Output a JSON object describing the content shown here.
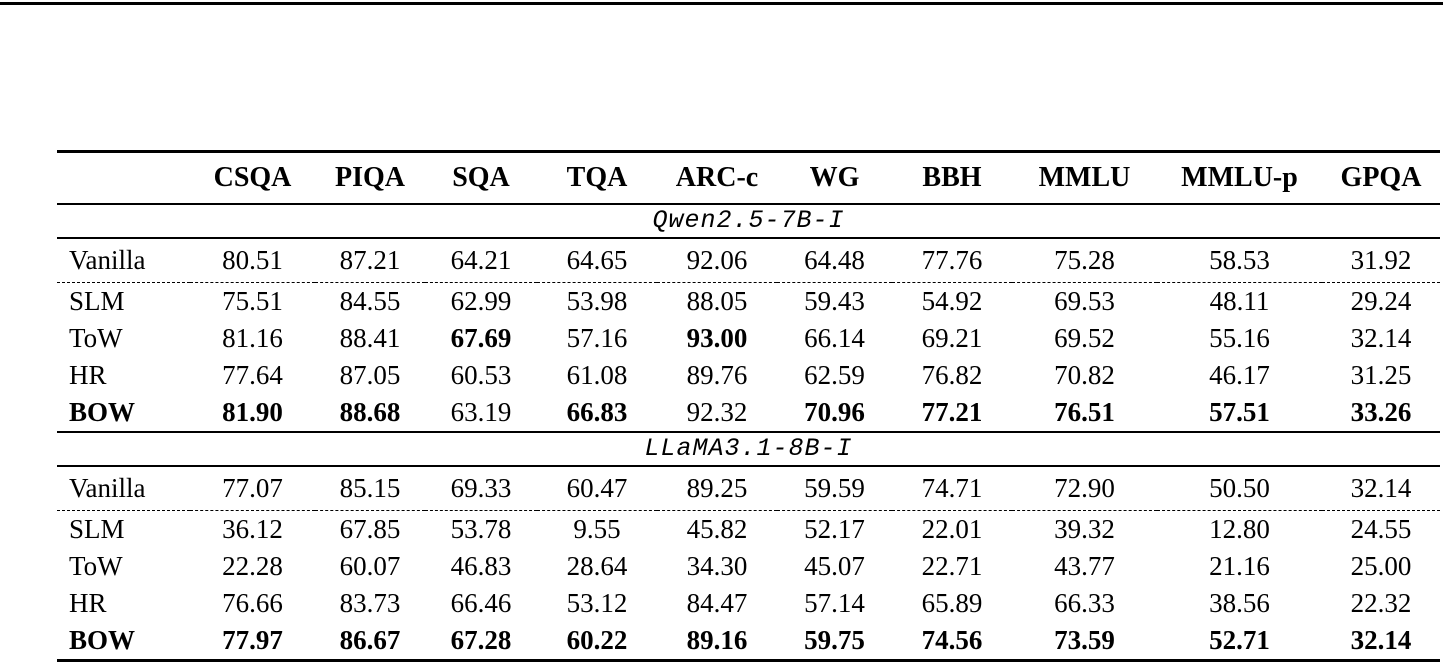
{
  "table": {
    "columns": [
      "",
      "CSQA",
      "PIQA",
      "SQA",
      "TQA",
      "ARC-c",
      "WG",
      "BBH",
      "MMLU",
      "MMLU-p",
      "GPQA"
    ],
    "sections": [
      {
        "title": "Qwen2.5-7B-I",
        "rows": [
          {
            "label": "Vanilla",
            "bold_label": 0,
            "divider_after": "dashed",
            "values": [
              "80.51",
              "87.21",
              "64.21",
              "64.65",
              "92.06",
              "64.48",
              "77.76",
              "75.28",
              "58.53",
              "31.92"
            ],
            "bold": [
              0,
              0,
              0,
              0,
              0,
              0,
              0,
              0,
              0,
              0
            ]
          },
          {
            "label": "SLM",
            "bold_label": 0,
            "divider_after": "none",
            "values": [
              "75.51",
              "84.55",
              "62.99",
              "53.98",
              "88.05",
              "59.43",
              "54.92",
              "69.53",
              "48.11",
              "29.24"
            ],
            "bold": [
              0,
              0,
              0,
              0,
              0,
              0,
              0,
              0,
              0,
              0
            ]
          },
          {
            "label": "ToW",
            "bold_label": 0,
            "divider_after": "none",
            "values": [
              "81.16",
              "88.41",
              "67.69",
              "57.16",
              "93.00",
              "66.14",
              "69.21",
              "69.52",
              "55.16",
              "32.14"
            ],
            "bold": [
              0,
              0,
              1,
              0,
              1,
              0,
              0,
              0,
              0,
              0
            ]
          },
          {
            "label": "HR",
            "bold_label": 0,
            "divider_after": "none",
            "values": [
              "77.64",
              "87.05",
              "60.53",
              "61.08",
              "89.76",
              "62.59",
              "76.82",
              "70.82",
              "46.17",
              "31.25"
            ],
            "bold": [
              0,
              0,
              0,
              0,
              0,
              0,
              0,
              0,
              0,
              0
            ]
          },
          {
            "label": "BOW",
            "bold_label": 1,
            "divider_after": "rule",
            "values": [
              "81.90",
              "88.68",
              "63.19",
              "66.83",
              "92.32",
              "70.96",
              "77.21",
              "76.51",
              "57.51",
              "33.26"
            ],
            "bold": [
              1,
              1,
              0,
              1,
              0,
              1,
              1,
              1,
              1,
              1
            ]
          }
        ]
      },
      {
        "title": "LLaMA3.1-8B-I",
        "rows": [
          {
            "label": "Vanilla",
            "bold_label": 0,
            "divider_after": "dashed",
            "values": [
              "77.07",
              "85.15",
              "69.33",
              "60.47",
              "89.25",
              "59.59",
              "74.71",
              "72.90",
              "50.50",
              "32.14"
            ],
            "bold": [
              0,
              0,
              0,
              0,
              0,
              0,
              0,
              0,
              0,
              0
            ]
          },
          {
            "label": "SLM",
            "bold_label": 0,
            "divider_after": "none",
            "values": [
              "36.12",
              "67.85",
              "53.78",
              "9.55",
              "45.82",
              "52.17",
              "22.01",
              "39.32",
              "12.80",
              "24.55"
            ],
            "bold": [
              0,
              0,
              0,
              0,
              0,
              0,
              0,
              0,
              0,
              0
            ]
          },
          {
            "label": "ToW",
            "bold_label": 0,
            "divider_after": "none",
            "values": [
              "22.28",
              "60.07",
              "46.83",
              "28.64",
              "34.30",
              "45.07",
              "22.71",
              "43.77",
              "21.16",
              "25.00"
            ],
            "bold": [
              0,
              0,
              0,
              0,
              0,
              0,
              0,
              0,
              0,
              0
            ]
          },
          {
            "label": "HR",
            "bold_label": 0,
            "divider_after": "none",
            "values": [
              "76.66",
              "83.73",
              "66.46",
              "53.12",
              "84.47",
              "57.14",
              "65.89",
              "66.33",
              "38.56",
              "22.32"
            ],
            "bold": [
              0,
              0,
              0,
              0,
              0,
              0,
              0,
              0,
              0,
              0
            ]
          },
          {
            "label": "BOW",
            "bold_label": 1,
            "divider_after": "none",
            "values": [
              "77.97",
              "86.67",
              "67.28",
              "60.22",
              "89.16",
              "59.75",
              "74.56",
              "73.59",
              "52.71",
              "32.14"
            ],
            "bold": [
              1,
              1,
              1,
              1,
              1,
              1,
              1,
              1,
              1,
              1
            ]
          }
        ]
      }
    ]
  }
}
